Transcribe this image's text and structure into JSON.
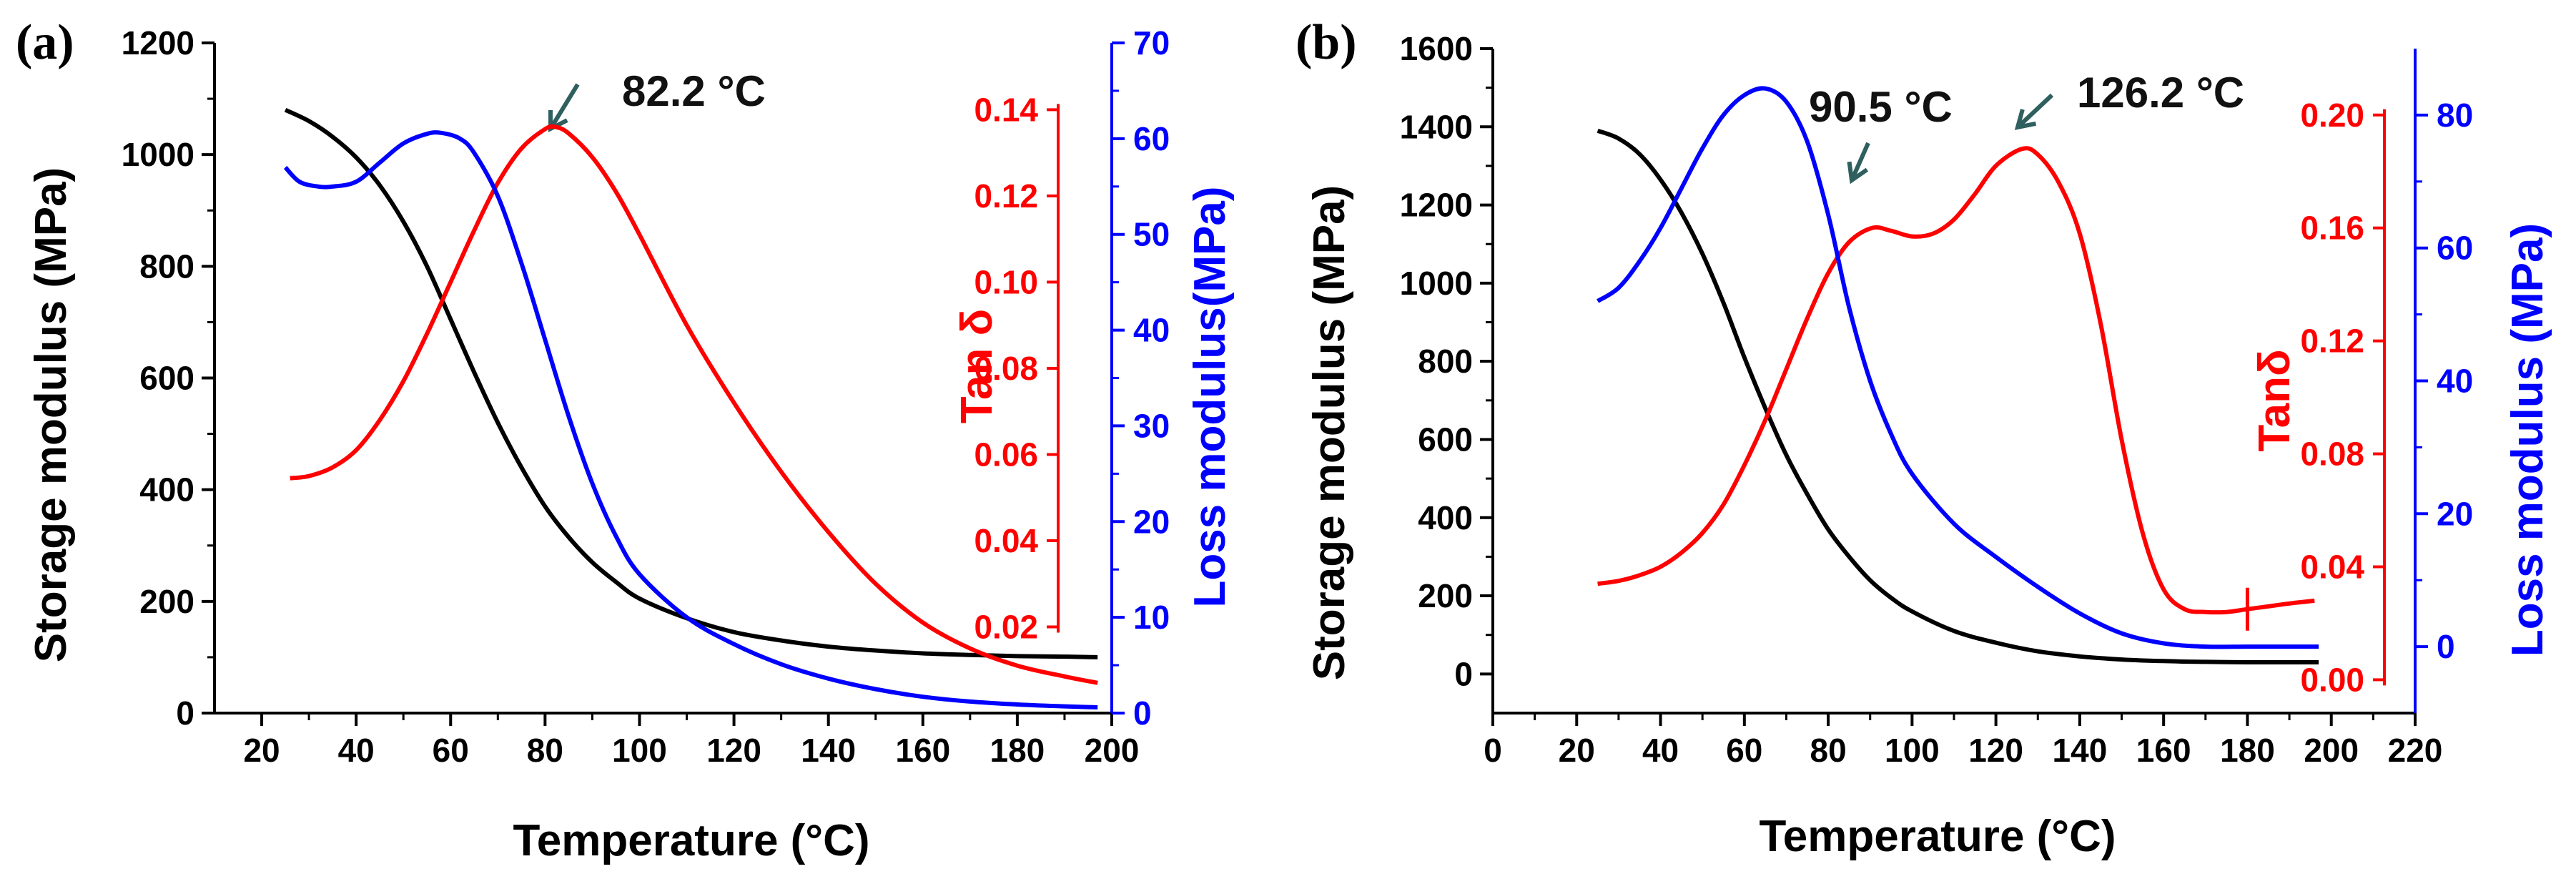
{
  "chart_data": [
    {
      "panel_label": "(a)",
      "type": "line",
      "xlabel": "Temperature (°C)",
      "xlim": [
        10,
        200
      ],
      "xticks": [
        20,
        40,
        60,
        80,
        100,
        120,
        140,
        160,
        180,
        200
      ],
      "y_left": {
        "label": "Storage modulus (MPa)",
        "lim": [
          0,
          1200
        ],
        "ticks": [
          0,
          200,
          400,
          600,
          800,
          1000,
          1200
        ],
        "decimals": 0,
        "color": "#000000"
      },
      "y_tan": {
        "label": "Tan δ",
        "lim": [
          0,
          0.1555
        ],
        "ticks": [
          0.02,
          0.04,
          0.06,
          0.08,
          0.1,
          0.12,
          0.14
        ],
        "decimals": 2,
        "color": "#ff0000"
      },
      "y_right": {
        "label": "Loss modulus(MPa)",
        "lim": [
          0,
          70
        ],
        "ticks": [
          0,
          10,
          20,
          30,
          40,
          50,
          60,
          70
        ],
        "decimals": 0,
        "color": "#0000ff"
      },
      "series": [
        {
          "name": "Storage modulus",
          "axis": "left",
          "color": "#000000",
          "x": [
            25,
            30,
            35,
            40,
            45,
            50,
            55,
            60,
            65,
            70,
            75,
            80,
            85,
            90,
            95,
            100,
            110,
            120,
            130,
            140,
            150,
            160,
            170,
            180,
            190,
            197
          ],
          "y": [
            1080,
            1060,
            1032,
            995,
            945,
            880,
            800,
            705,
            610,
            520,
            440,
            370,
            315,
            270,
            235,
            205,
            170,
            145,
            130,
            119,
            112,
            107,
            104,
            102,
            101,
            100
          ]
        },
        {
          "name": "Tan δ",
          "axis": "tan",
          "color": "#ff0000",
          "x": [
            26,
            30,
            35,
            40,
            45,
            50,
            55,
            60,
            65,
            70,
            75,
            80,
            82.2,
            85,
            90,
            95,
            100,
            110,
            120,
            130,
            140,
            150,
            160,
            170,
            180,
            190,
            197
          ],
          "y": [
            0.0545,
            0.055,
            0.057,
            0.061,
            0.068,
            0.077,
            0.088,
            0.1,
            0.112,
            0.123,
            0.131,
            0.1355,
            0.136,
            0.1345,
            0.129,
            0.121,
            0.111,
            0.09,
            0.072,
            0.056,
            0.042,
            0.03,
            0.021,
            0.015,
            0.011,
            0.0085,
            0.007
          ]
        },
        {
          "name": "Loss modulus",
          "axis": "right",
          "color": "#0000ff",
          "x": [
            25,
            28,
            32,
            35,
            40,
            45,
            50,
            55,
            58,
            62,
            65,
            70,
            75,
            80,
            85,
            90,
            95,
            100,
            110,
            120,
            130,
            140,
            150,
            160,
            170,
            180,
            190,
            197
          ],
          "y": [
            57,
            55.5,
            55,
            55,
            55.5,
            57.5,
            59.5,
            60.5,
            60.6,
            60,
            58.5,
            54,
            47,
            39,
            31,
            24,
            18.5,
            14.5,
            10,
            7.2,
            5.1,
            3.6,
            2.5,
            1.7,
            1.2,
            0.9,
            0.7,
            0.6
          ]
        }
      ],
      "annotations": [
        {
          "text": "82.2 °C",
          "x": 82.2,
          "series": "Tan δ"
        }
      ]
    },
    {
      "panel_label": "(b)",
      "type": "line",
      "xlabel": "Temperature (°C)",
      "xlim": [
        0,
        220
      ],
      "xticks": [
        0,
        20,
        40,
        60,
        80,
        100,
        120,
        140,
        160,
        180,
        200,
        220
      ],
      "y_left": {
        "label": "Storage modulus (MPa)",
        "lim": [
          -100,
          1600
        ],
        "ticks": [
          0,
          200,
          400,
          600,
          800,
          1000,
          1200,
          1400,
          1600
        ],
        "decimals": 0,
        "color": "#000000"
      },
      "y_tan": {
        "label": "Tanδ",
        "lim": [
          -0.0118,
          0.2235
        ],
        "ticks": [
          0.0,
          0.04,
          0.08,
          0.12,
          0.16,
          0.2
        ],
        "decimals": 2,
        "color": "#ff0000"
      },
      "y_right": {
        "label": "Loss modulus (MPa)",
        "lim": [
          -10,
          90
        ],
        "ticks": [
          0,
          20,
          40,
          60,
          80
        ],
        "decimals": 0,
        "color": "#0000ff"
      },
      "series": [
        {
          "name": "Storage modulus",
          "axis": "left",
          "color": "#000000",
          "x": [
            25,
            30,
            35,
            40,
            45,
            50,
            55,
            60,
            65,
            70,
            75,
            80,
            85,
            90,
            95,
            100,
            110,
            120,
            130,
            140,
            150,
            160,
            170,
            180,
            190,
            197
          ],
          "y": [
            1390,
            1370,
            1330,
            1265,
            1180,
            1075,
            950,
            810,
            680,
            560,
            460,
            370,
            300,
            240,
            195,
            160,
            110,
            80,
            58,
            45,
            37,
            33,
            31,
            30,
            30,
            30
          ]
        },
        {
          "name": "Tan δ",
          "axis": "tan",
          "color": "#ff0000",
          "x": [
            25,
            30,
            35,
            40,
            45,
            50,
            55,
            60,
            65,
            70,
            75,
            80,
            85,
            90.5,
            95,
            100,
            105,
            110,
            115,
            120,
            126.2,
            130,
            135,
            140,
            145,
            150,
            155,
            160,
            165,
            170,
            175,
            180,
            185,
            190,
            196
          ],
          "y": [
            0.034,
            0.035,
            0.037,
            0.04,
            0.045,
            0.052,
            0.062,
            0.076,
            0.092,
            0.11,
            0.128,
            0.144,
            0.155,
            0.16,
            0.159,
            0.157,
            0.158,
            0.163,
            0.172,
            0.182,
            0.188,
            0.186,
            0.176,
            0.158,
            0.126,
            0.085,
            0.052,
            0.032,
            0.025,
            0.024,
            0.024,
            0.025,
            0.026,
            0.027,
            0.028
          ]
        },
        {
          "name": "Loss modulus",
          "axis": "right",
          "color": "#0000ff",
          "x": [
            25,
            30,
            35,
            40,
            45,
            50,
            55,
            60,
            65,
            70,
            75,
            80,
            85,
            90,
            95,
            100,
            110,
            120,
            130,
            140,
            150,
            160,
            170,
            180,
            190,
            197
          ],
          "y": [
            52,
            54,
            58,
            63,
            69,
            75,
            80,
            83,
            84,
            82,
            76,
            65,
            51,
            40,
            32,
            26,
            18.5,
            13.5,
            9,
            5,
            2,
            0.5,
            0,
            0,
            0,
            0
          ]
        }
      ],
      "annotations": [
        {
          "text": "90.5 °C",
          "x": 90.5,
          "series": "Tan δ"
        },
        {
          "text": "126.2 °C",
          "x": 126.2,
          "series": "Tan δ"
        }
      ]
    }
  ]
}
